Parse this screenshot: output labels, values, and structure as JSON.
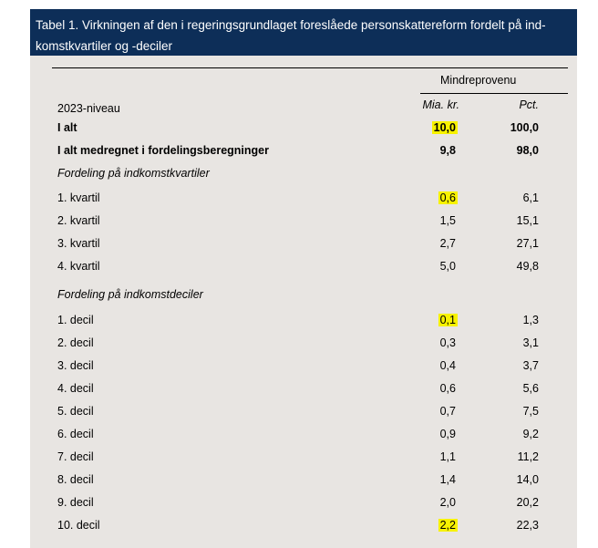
{
  "title": {
    "line1": "Tabel 1. Virkningen af den i regeringsgrundlaget foreslåede personskattereform fordelt på ind-",
    "line2": "komstkvartiler og -deciler"
  },
  "header": {
    "group": "Mindreprovenu",
    "level": "2023-niveau",
    "col1": "Mia. kr.",
    "col2": "Pct."
  },
  "rows": [
    {
      "label": "I alt",
      "v1": "10,0",
      "v2": "100,0"
    },
    {
      "label": "I alt medregnet i fordelingsberegninger",
      "v1": "9,8",
      "v2": "98,0"
    },
    {
      "label": "Fordeling på indkomstkvartiler"
    },
    {
      "label": "1. kvartil",
      "v1": "0,6",
      "v2": "6,1"
    },
    {
      "label": "2. kvartil",
      "v1": "1,5",
      "v2": "15,1"
    },
    {
      "label": "3. kvartil",
      "v1": "2,7",
      "v2": "27,1"
    },
    {
      "label": "4. kvartil",
      "v1": "5,0",
      "v2": "49,8"
    },
    {
      "label": "Fordeling på indkomstdeciler"
    },
    {
      "label": "1. decil",
      "v1": "0,1",
      "v2": "1,3"
    },
    {
      "label": "2. decil",
      "v1": "0,3",
      "v2": "3,1"
    },
    {
      "label": "3. decil",
      "v1": "0,4",
      "v2": "3,7"
    },
    {
      "label": "4. decil",
      "v1": "0,6",
      "v2": "5,6"
    },
    {
      "label": "5. decil",
      "v1": "0,7",
      "v2": "7,5"
    },
    {
      "label": "6. decil",
      "v1": "0,9",
      "v2": "9,2"
    },
    {
      "label": "7. decil",
      "v1": "1,1",
      "v2": "11,2"
    },
    {
      "label": "8. decil",
      "v1": "1,4",
      "v2": "14,0"
    },
    {
      "label": "9. decil",
      "v1": "2,0",
      "v2": "20,2"
    },
    {
      "label": "10. decil",
      "v1": "2,2",
      "v2": "22,3"
    }
  ],
  "colors": {
    "title_bg": "#0d2e58",
    "panel_bg": "#e8e5e2",
    "highlight": "#f7f200"
  }
}
